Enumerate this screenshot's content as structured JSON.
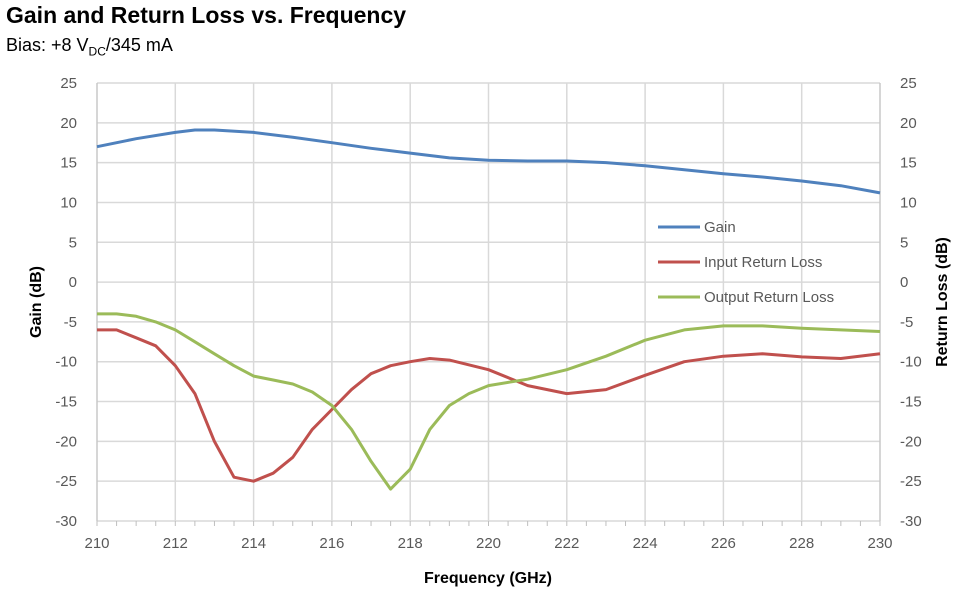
{
  "chart_data": {
    "type": "line",
    "title": "Gain and Return Loss vs. Frequency",
    "subtitle": {
      "prefix": "Bias: +8 V",
      "sub": "DC",
      "suffix": "/345 mA"
    },
    "xlabel": "Frequency (GHz)",
    "ylabel": "Gain (dB)",
    "y2label": "Return Loss (dB)",
    "xlim": [
      210,
      230
    ],
    "ylim": [
      -30,
      25
    ],
    "y2lim": [
      -30,
      25
    ],
    "xticks": [
      210,
      212,
      214,
      216,
      218,
      220,
      222,
      224,
      226,
      228,
      230
    ],
    "yticks": [
      25,
      20,
      15,
      10,
      5,
      0,
      -5,
      -10,
      -15,
      -20,
      -25,
      -30
    ],
    "grid": true,
    "legend_position": "center-right",
    "series": [
      {
        "name": "Gain",
        "color": "#4f81bd",
        "axis": "left",
        "x": [
          210,
          211,
          212,
          212.5,
          213,
          214,
          215,
          216,
          217,
          218,
          219,
          220,
          221,
          222,
          223,
          224,
          225,
          226,
          227,
          228,
          229,
          230
        ],
        "y": [
          17,
          18,
          18.8,
          19.1,
          19.1,
          18.8,
          18.2,
          17.5,
          16.8,
          16.2,
          15.6,
          15.3,
          15.2,
          15.2,
          15.0,
          14.6,
          14.1,
          13.6,
          13.2,
          12.7,
          12.1,
          11.2
        ]
      },
      {
        "name": "Input Return Loss",
        "color": "#c0504d",
        "axis": "right",
        "x": [
          210,
          210.5,
          211,
          211.5,
          212,
          212.5,
          213,
          213.5,
          214,
          214.5,
          215,
          215.5,
          216,
          216.5,
          217,
          217.5,
          218,
          218.5,
          219,
          220,
          221,
          222,
          223,
          224,
          225,
          226,
          227,
          228,
          229,
          230
        ],
        "y": [
          -6,
          -6,
          -7,
          -8,
          -10.5,
          -14,
          -20,
          -24.5,
          -25,
          -24,
          -22,
          -18.5,
          -16,
          -13.5,
          -11.5,
          -10.5,
          -10,
          -9.6,
          -9.8,
          -11,
          -13,
          -14,
          -13.5,
          -11.7,
          -10,
          -9.3,
          -9,
          -9.4,
          -9.6,
          -9.0
        ]
      },
      {
        "name": "Output Return Loss",
        "color": "#9bbb59",
        "axis": "right",
        "x": [
          210,
          210.5,
          211,
          211.5,
          212,
          212.5,
          213,
          213.5,
          214,
          214.5,
          215,
          215.5,
          216,
          216.5,
          217,
          217.5,
          218,
          218.5,
          219,
          219.5,
          220,
          221,
          222,
          223,
          224,
          225,
          226,
          227,
          228,
          229,
          230
        ],
        "y": [
          -4,
          -4,
          -4.3,
          -5,
          -6,
          -7.5,
          -9,
          -10.5,
          -11.8,
          -12.3,
          -12.8,
          -13.8,
          -15.5,
          -18.5,
          -22.5,
          -26,
          -23.5,
          -18.5,
          -15.5,
          -14,
          -13,
          -12.2,
          -11,
          -9.3,
          -7.3,
          -6,
          -5.5,
          -5.5,
          -5.8,
          -6,
          -6.2
        ]
      }
    ]
  }
}
